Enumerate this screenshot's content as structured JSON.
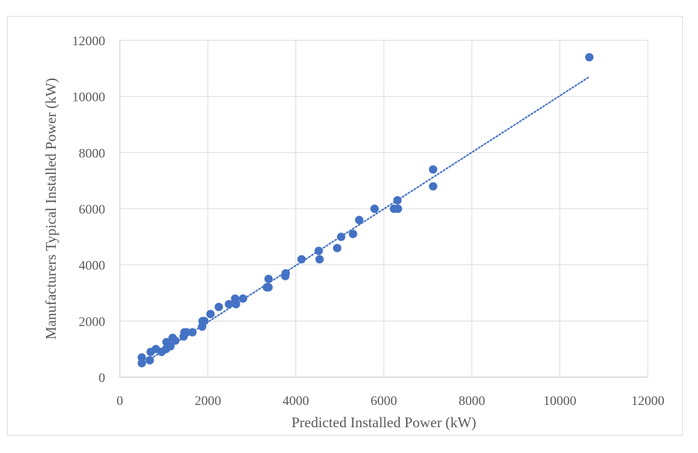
{
  "chart_data": {
    "type": "scatter",
    "title": "",
    "xlabel": "Predicted Installed Power (kW)",
    "ylabel": "Manufacturers Typical Installed Power (kW)",
    "xlim": [
      0,
      12000
    ],
    "ylim": [
      0,
      12000
    ],
    "xticks": [
      "0",
      "2000",
      "4000",
      "6000",
      "8000",
      "10000",
      "12000"
    ],
    "yticks": [
      "0",
      "2000",
      "4000",
      "6000",
      "8000",
      "10000",
      "12000"
    ],
    "grid": true,
    "marker_color": "#4472c4",
    "trendline": {
      "type": "linear",
      "style": "dotted",
      "color": "#4472c4",
      "x": [
        500,
        10680
      ],
      "y": [
        450,
        10710
      ]
    },
    "points": [
      [
        500,
        700
      ],
      [
        500,
        500
      ],
      [
        680,
        600
      ],
      [
        700,
        900
      ],
      [
        820,
        1000
      ],
      [
        950,
        900
      ],
      [
        1050,
        1000
      ],
      [
        1060,
        1250
      ],
      [
        1100,
        1100
      ],
      [
        1150,
        1100
      ],
      [
        1200,
        1400
      ],
      [
        1260,
        1300
      ],
      [
        1450,
        1450
      ],
      [
        1470,
        1600
      ],
      [
        1520,
        1600
      ],
      [
        1650,
        1600
      ],
      [
        1870,
        1800
      ],
      [
        1880,
        2000
      ],
      [
        1920,
        2000
      ],
      [
        2060,
        2250
      ],
      [
        2250,
        2500
      ],
      [
        2480,
        2600
      ],
      [
        2620,
        2800
      ],
      [
        2640,
        2600
      ],
      [
        2800,
        2800
      ],
      [
        3340,
        3200
      ],
      [
        3380,
        3200
      ],
      [
        3380,
        3500
      ],
      [
        3760,
        3600
      ],
      [
        3770,
        3700
      ],
      [
        4130,
        4200
      ],
      [
        4520,
        4500
      ],
      [
        4540,
        4200
      ],
      [
        4940,
        4600
      ],
      [
        5030,
        5000
      ],
      [
        5300,
        5100
      ],
      [
        5440,
        5600
      ],
      [
        5790,
        6000
      ],
      [
        6230,
        6000
      ],
      [
        6310,
        6300
      ],
      [
        6320,
        6000
      ],
      [
        7120,
        7400
      ],
      [
        7120,
        6800
      ],
      [
        10670,
        11400
      ]
    ]
  }
}
